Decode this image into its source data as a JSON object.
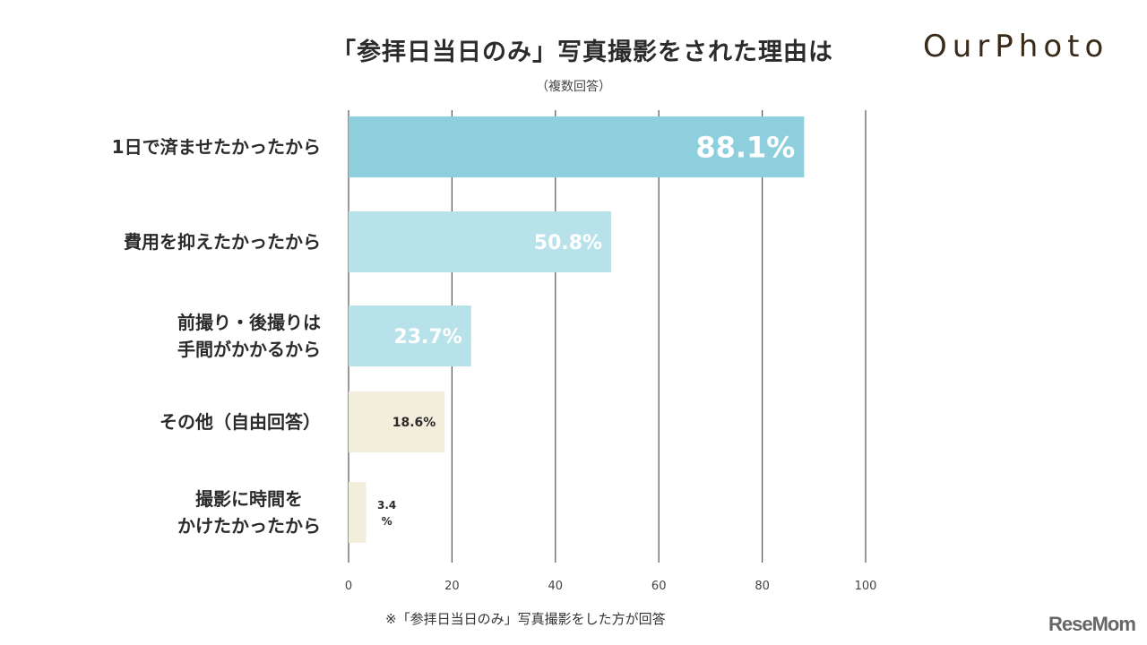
{
  "logo": "OurPhoto",
  "watermark": "ReseMom",
  "chart_data": {
    "type": "bar",
    "orientation": "horizontal",
    "title": "「参拝日当日のみ」写真撮影をされた理由は",
    "subtitle": "（複数回答）",
    "categories": [
      "1日で済ませたかったから",
      "費用を抑えたかったから",
      "前撮り・後撮りは\n手間がかかるから",
      "その他（自由回答）",
      "撮影に時間を\nかけたかったから"
    ],
    "values": [
      88.1,
      50.8,
      23.7,
      18.6,
      3.4
    ],
    "data_labels": [
      "88.1%",
      "50.8%",
      "23.7%",
      "18.6%",
      "3.4\n%"
    ],
    "colors": [
      "#8ecfdd",
      "#b8e2ea",
      "#b8e2ea",
      "#f3eedb",
      "#f3eedb"
    ],
    "xlim": [
      0,
      100
    ],
    "xticks": [
      "0",
      "20",
      "40",
      "60",
      "80",
      "100"
    ],
    "grid": true,
    "note": "※「参拝日当日のみ」写真撮影をした方が回答"
  }
}
